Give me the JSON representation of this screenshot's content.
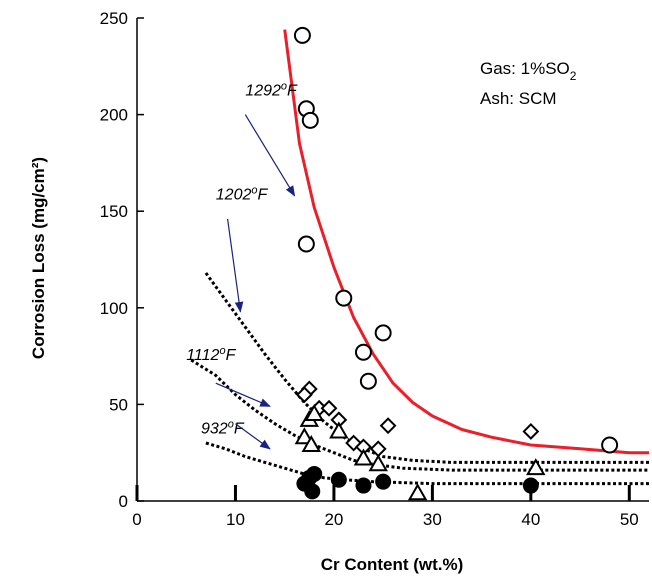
{
  "chart_data": {
    "type": "scatter",
    "xlabel": "Cr Content (wt.%)",
    "ylabel": "Corrosion Loss (mg/cm²)",
    "xlim": [
      0,
      52
    ],
    "ylim": [
      0,
      250
    ],
    "x_ticks": [
      0,
      10,
      20,
      30,
      40,
      50
    ],
    "y_ticks": [
      0,
      50,
      100,
      150,
      200,
      250
    ],
    "x_tick_labels": [
      "0",
      "10",
      "20",
      "30",
      "40",
      "50"
    ],
    "y_tick_labels": [
      "0",
      "50",
      "100",
      "150",
      "200",
      "250"
    ],
    "grid": false,
    "annotations": {
      "gas": "Gas: 1%SO",
      "gas_subscript": "2",
      "ash": "Ash:  SCM"
    },
    "temperature_labels": [
      {
        "text": "1292",
        "unit": "F",
        "superscript": "o",
        "text_at": [
          11,
          210
        ],
        "arrow_from": [
          11,
          200
        ],
        "arrow_to": [
          16,
          158
        ]
      },
      {
        "text": "1202",
        "unit": "F",
        "superscript": "o",
        "text_at": [
          8,
          156
        ],
        "arrow_from": [
          9.2,
          146
        ],
        "arrow_to": [
          10.5,
          98
        ]
      },
      {
        "text": "1112",
        "unit": "F",
        "superscript": "o",
        "text_at": [
          5,
          73
        ],
        "arrow_from": [
          8,
          61
        ],
        "arrow_to": [
          13.5,
          49
        ]
      },
      {
        "text": "932",
        "unit": "F",
        "superscript": "o",
        "text_at": [
          6.5,
          35
        ],
        "arrow_from": [
          10,
          40
        ],
        "arrow_to": [
          13.5,
          27
        ]
      }
    ],
    "series": [
      {
        "marker": "circle-open",
        "color": "#000000",
        "points": [
          [
            16.8,
            241
          ],
          [
            17.2,
            203
          ],
          [
            17.6,
            197
          ],
          [
            17.2,
            133
          ],
          [
            21,
            105
          ],
          [
            25,
            87
          ],
          [
            23,
            77
          ],
          [
            23.5,
            62
          ],
          [
            48,
            29
          ]
        ]
      },
      {
        "marker": "diamond-open",
        "color": "#000000",
        "points": [
          [
            17.5,
            58
          ],
          [
            17,
            55
          ],
          [
            18.5,
            48
          ],
          [
            19.5,
            48
          ],
          [
            20.5,
            42
          ],
          [
            22,
            30
          ],
          [
            23,
            28
          ],
          [
            24.5,
            27
          ],
          [
            25.5,
            39
          ],
          [
            40,
            36
          ]
        ]
      },
      {
        "marker": "triangle-open",
        "color": "#000000",
        "points": [
          [
            17,
            33
          ],
          [
            17.5,
            42
          ],
          [
            18,
            45
          ],
          [
            17.7,
            29
          ],
          [
            20.5,
            36
          ],
          [
            23,
            22
          ],
          [
            24.5,
            19
          ],
          [
            28.5,
            4
          ],
          [
            40.5,
            17
          ]
        ]
      },
      {
        "marker": "circle-filled",
        "color": "#000000",
        "points": [
          [
            17,
            9
          ],
          [
            17.5,
            12
          ],
          [
            17.8,
            5
          ],
          [
            18,
            14
          ],
          [
            20.5,
            11
          ],
          [
            23,
            8
          ],
          [
            25,
            10
          ],
          [
            40,
            8
          ]
        ]
      }
    ],
    "fit_curves": [
      {
        "style": "solid",
        "color": "#e8202a",
        "points": [
          [
            15,
            244
          ],
          [
            16.5,
            185
          ],
          [
            18,
            152
          ],
          [
            20,
            121
          ],
          [
            22,
            95
          ],
          [
            24,
            76
          ],
          [
            26,
            61
          ],
          [
            28,
            51
          ],
          [
            30,
            44
          ],
          [
            33,
            37
          ],
          [
            36,
            33
          ],
          [
            40,
            29
          ],
          [
            45,
            27
          ],
          [
            50,
            25
          ],
          [
            52,
            25
          ]
        ]
      },
      {
        "style": "dotted",
        "color": "#000000",
        "points": [
          [
            7,
            118
          ],
          [
            9,
            104
          ],
          [
            11,
            90
          ],
          [
            13,
            76
          ],
          [
            15,
            63
          ],
          [
            17,
            51
          ],
          [
            19,
            41
          ],
          [
            21,
            33
          ],
          [
            23,
            27
          ],
          [
            25,
            23
          ],
          [
            28,
            21
          ],
          [
            32,
            20
          ],
          [
            40,
            20
          ],
          [
            52,
            20
          ]
        ]
      },
      {
        "style": "dotted",
        "color": "#000000",
        "points": [
          [
            5.5,
            73
          ],
          [
            8,
            65
          ],
          [
            10,
            55
          ],
          [
            12,
            47
          ],
          [
            14,
            40
          ],
          [
            16,
            34
          ],
          [
            18,
            29
          ],
          [
            20,
            25
          ],
          [
            22,
            21
          ],
          [
            24,
            19
          ],
          [
            27,
            17
          ],
          [
            32,
            16
          ],
          [
            40,
            16
          ],
          [
            52,
            16
          ]
        ]
      },
      {
        "style": "dotted",
        "color": "#000000",
        "points": [
          [
            7,
            30
          ],
          [
            9,
            27
          ],
          [
            11,
            23
          ],
          [
            13,
            20
          ],
          [
            15,
            17
          ],
          [
            17,
            14
          ],
          [
            19,
            12
          ],
          [
            21,
            11
          ],
          [
            24,
            10
          ],
          [
            30,
            9
          ],
          [
            40,
            9
          ],
          [
            52,
            9
          ]
        ]
      }
    ],
    "arrow_color": "#1a237e"
  }
}
